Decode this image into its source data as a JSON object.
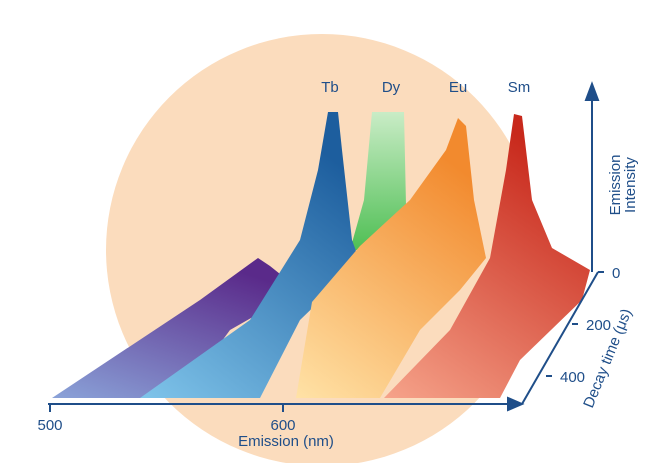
{
  "figure": {
    "peaks": [
      "Tb",
      "Dy",
      "Eu",
      "Sm"
    ],
    "emission_axis": {
      "label": "Emission (nm)",
      "ticks": [
        500,
        600
      ]
    },
    "decay_axis": {
      "label": "Decay time (μs)",
      "ticks": [
        0,
        200,
        400
      ]
    },
    "intensity_axis": {
      "label": [
        "Emission",
        "Intensity"
      ]
    }
  }
}
